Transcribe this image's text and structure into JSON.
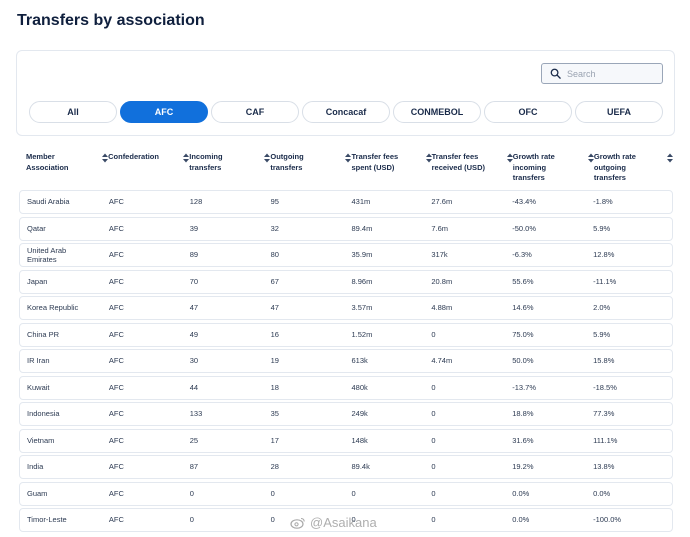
{
  "page": {
    "title": "Transfers by association"
  },
  "search": {
    "placeholder": "Search",
    "value": ""
  },
  "tabs": [
    {
      "label": "All",
      "active": false
    },
    {
      "label": "AFC",
      "active": true
    },
    {
      "label": "CAF",
      "active": false
    },
    {
      "label": "Concacaf",
      "active": false
    },
    {
      "label": "CONMEBOL",
      "active": false
    },
    {
      "label": "OFC",
      "active": false
    },
    {
      "label": "UEFA",
      "active": false
    }
  ],
  "table": {
    "headers": [
      [
        "Member",
        "Association"
      ],
      [
        "Confederation"
      ],
      [
        "Incoming",
        "transfers"
      ],
      [
        "Outgoing",
        "transfers"
      ],
      [
        "Transfer fees",
        "spent (USD)"
      ],
      [
        "Transfer fees",
        "received (USD)"
      ],
      [
        "Growth rate",
        "incoming",
        "transfers"
      ],
      [
        "Growth rate",
        "outgoing",
        "transfers"
      ]
    ],
    "rows": [
      {
        "association": [
          "Saudi Arabia"
        ],
        "confederation": "AFC",
        "incoming": "128",
        "outgoing": "95",
        "spent": "431m",
        "received": "27.6m",
        "growth_in": "-43.4%",
        "growth_out": "-1.8%"
      },
      {
        "association": [
          "Qatar"
        ],
        "confederation": "AFC",
        "incoming": "39",
        "outgoing": "32",
        "spent": "89.4m",
        "received": "7.6m",
        "growth_in": "-50.0%",
        "growth_out": "5.9%"
      },
      {
        "association": [
          "United Arab",
          "Emirates"
        ],
        "confederation": "AFC",
        "incoming": "89",
        "outgoing": "80",
        "spent": "35.9m",
        "received": "317k",
        "growth_in": "-6.3%",
        "growth_out": "12.8%"
      },
      {
        "association": [
          "Japan"
        ],
        "confederation": "AFC",
        "incoming": "70",
        "outgoing": "67",
        "spent": "8.96m",
        "received": "20.8m",
        "growth_in": "55.6%",
        "growth_out": "-11.1%"
      },
      {
        "association": [
          "Korea Republic"
        ],
        "confederation": "AFC",
        "incoming": "47",
        "outgoing": "47",
        "spent": "3.57m",
        "received": "4.88m",
        "growth_in": "14.6%",
        "growth_out": "2.0%"
      },
      {
        "association": [
          "China PR"
        ],
        "confederation": "AFC",
        "incoming": "49",
        "outgoing": "16",
        "spent": "1.52m",
        "received": "0",
        "growth_in": "75.0%",
        "growth_out": "5.9%"
      },
      {
        "association": [
          "IR Iran"
        ],
        "confederation": "AFC",
        "incoming": "30",
        "outgoing": "19",
        "spent": "613k",
        "received": "4.74m",
        "growth_in": "50.0%",
        "growth_out": "15.8%"
      },
      {
        "association": [
          "Kuwait"
        ],
        "confederation": "AFC",
        "incoming": "44",
        "outgoing": "18",
        "spent": "480k",
        "received": "0",
        "growth_in": "-13.7%",
        "growth_out": "-18.5%"
      },
      {
        "association": [
          "Indonesia"
        ],
        "confederation": "AFC",
        "incoming": "133",
        "outgoing": "35",
        "spent": "249k",
        "received": "0",
        "growth_in": "18.8%",
        "growth_out": "77.3%"
      },
      {
        "association": [
          "Vietnam"
        ],
        "confederation": "AFC",
        "incoming": "25",
        "outgoing": "17",
        "spent": "148k",
        "received": "0",
        "growth_in": "31.6%",
        "growth_out": "111.1%"
      },
      {
        "association": [
          "India"
        ],
        "confederation": "AFC",
        "incoming": "87",
        "outgoing": "28",
        "spent": "89.4k",
        "received": "0",
        "growth_in": "19.2%",
        "growth_out": "13.8%"
      },
      {
        "association": [
          "Guam"
        ],
        "confederation": "AFC",
        "incoming": "0",
        "outgoing": "0",
        "spent": "0",
        "received": "0",
        "growth_in": "0.0%",
        "growth_out": "0.0%"
      },
      {
        "association": [
          "Timor-Leste"
        ],
        "confederation": "AFC",
        "incoming": "0",
        "outgoing": "0",
        "spent": "0",
        "received": "0",
        "growth_in": "0.0%",
        "growth_out": "-100.0%"
      }
    ]
  },
  "watermark": {
    "text": "@Asaikana",
    "icon": "weibo-icon"
  },
  "colors": {
    "accent": "#1170dc",
    "border": "#e3e8ef",
    "text": "#1a2b4a"
  }
}
